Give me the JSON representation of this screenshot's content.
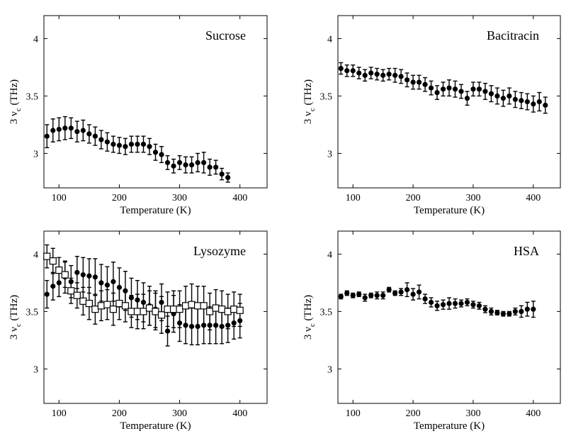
{
  "chart_data": [
    {
      "type": "scatter",
      "title": "Sucrose",
      "xlabel": "Temperature (K)",
      "ylabel_main": "3 ν",
      "ylabel_sub": "c",
      "ylabel_unit": "(THz)",
      "xlim": [
        75,
        445
      ],
      "ylim": [
        2.7,
        4.2
      ],
      "xticks": [
        100,
        200,
        300,
        400
      ],
      "xtick_labels": [
        "100",
        "200",
        "300",
        "400"
      ],
      "yticks": [
        3,
        3.5,
        4
      ],
      "ytick_labels": [
        "3",
        "3.5",
        "4"
      ],
      "series": [
        {
          "name": "Sucrose",
          "marker": "filled-circle",
          "x": [
            80,
            90,
            100,
            110,
            120,
            130,
            140,
            150,
            160,
            170,
            180,
            190,
            200,
            210,
            220,
            230,
            240,
            250,
            260,
            270,
            280,
            290,
            300,
            310,
            320,
            330,
            340,
            350,
            360,
            370,
            380
          ],
          "y": [
            3.15,
            3.2,
            3.21,
            3.22,
            3.22,
            3.19,
            3.2,
            3.17,
            3.15,
            3.12,
            3.1,
            3.08,
            3.07,
            3.06,
            3.08,
            3.08,
            3.08,
            3.06,
            3.01,
            2.99,
            2.92,
            2.89,
            2.92,
            2.9,
            2.9,
            2.92,
            2.92,
            2.88,
            2.88,
            2.82,
            2.79
          ],
          "err": [
            0.1,
            0.1,
            0.1,
            0.1,
            0.09,
            0.09,
            0.09,
            0.08,
            0.08,
            0.08,
            0.08,
            0.07,
            0.07,
            0.07,
            0.07,
            0.07,
            0.07,
            0.07,
            0.07,
            0.07,
            0.06,
            0.06,
            0.06,
            0.07,
            0.07,
            0.08,
            0.09,
            0.07,
            0.06,
            0.05,
            0.04
          ]
        }
      ]
    },
    {
      "type": "scatter",
      "title": "Bacitracin",
      "xlabel": "Temperature (K)",
      "ylabel_main": "3 ν",
      "ylabel_sub": "c",
      "ylabel_unit": "(THz)",
      "xlim": [
        75,
        445
      ],
      "ylim": [
        2.7,
        4.2
      ],
      "xticks": [
        100,
        200,
        300,
        400
      ],
      "xtick_labels": [
        "100",
        "200",
        "300",
        "400"
      ],
      "yticks": [
        3,
        3.5,
        4
      ],
      "ytick_labels": [
        "3",
        "3.5",
        "4"
      ],
      "series": [
        {
          "name": "Bacitracin",
          "marker": "filled-circle",
          "x": [
            80,
            90,
            100,
            110,
            120,
            130,
            140,
            150,
            160,
            170,
            180,
            190,
            200,
            210,
            220,
            230,
            240,
            250,
            260,
            270,
            280,
            290,
            300,
            310,
            320,
            330,
            340,
            350,
            360,
            370,
            380,
            390,
            400,
            410,
            420
          ],
          "y": [
            3.74,
            3.72,
            3.72,
            3.7,
            3.68,
            3.7,
            3.69,
            3.68,
            3.69,
            3.68,
            3.67,
            3.64,
            3.62,
            3.62,
            3.6,
            3.57,
            3.53,
            3.56,
            3.57,
            3.56,
            3.54,
            3.48,
            3.56,
            3.56,
            3.54,
            3.52,
            3.5,
            3.48,
            3.5,
            3.47,
            3.46,
            3.45,
            3.43,
            3.45,
            3.42
          ],
          "err": [
            0.05,
            0.05,
            0.05,
            0.05,
            0.05,
            0.05,
            0.05,
            0.05,
            0.05,
            0.06,
            0.06,
            0.06,
            0.06,
            0.06,
            0.06,
            0.06,
            0.06,
            0.06,
            0.07,
            0.07,
            0.06,
            0.06,
            0.06,
            0.06,
            0.07,
            0.07,
            0.07,
            0.07,
            0.07,
            0.07,
            0.07,
            0.07,
            0.07,
            0.08,
            0.07
          ]
        }
      ]
    },
    {
      "type": "scatter",
      "title": "Lysozyme",
      "xlabel": "Temperature (K)",
      "ylabel_main": "3 ν",
      "ylabel_sub": "c",
      "ylabel_unit": "(THz)",
      "xlim": [
        75,
        445
      ],
      "ylim": [
        2.7,
        4.2
      ],
      "xticks": [
        100,
        200,
        300,
        400
      ],
      "xtick_labels": [
        "100",
        "200",
        "300",
        "400"
      ],
      "yticks": [
        3,
        3.5,
        4
      ],
      "ytick_labels": [
        "3",
        "3.5",
        "4"
      ],
      "series": [
        {
          "name": "Lysozyme (circles)",
          "marker": "filled-circle",
          "x": [
            80,
            90,
            100,
            110,
            120,
            130,
            140,
            150,
            160,
            170,
            180,
            190,
            200,
            210,
            220,
            230,
            240,
            250,
            260,
            270,
            280,
            290,
            300,
            310,
            320,
            330,
            340,
            350,
            360,
            370,
            380,
            390,
            400
          ],
          "y": [
            3.65,
            3.72,
            3.75,
            3.8,
            3.76,
            3.84,
            3.82,
            3.81,
            3.8,
            3.75,
            3.73,
            3.76,
            3.71,
            3.68,
            3.62,
            3.6,
            3.58,
            3.55,
            3.52,
            3.58,
            3.33,
            3.48,
            3.4,
            3.38,
            3.37,
            3.37,
            3.38,
            3.38,
            3.38,
            3.37,
            3.38,
            3.4,
            3.42
          ],
          "err": [
            0.12,
            0.12,
            0.12,
            0.14,
            0.14,
            0.14,
            0.15,
            0.15,
            0.16,
            0.16,
            0.16,
            0.17,
            0.17,
            0.17,
            0.17,
            0.17,
            0.17,
            0.17,
            0.16,
            0.16,
            0.13,
            0.16,
            0.16,
            0.16,
            0.16,
            0.16,
            0.16,
            0.16,
            0.16,
            0.15,
            0.15,
            0.14,
            0.15
          ]
        },
        {
          "name": "Lysozyme (squares)",
          "marker": "open-square",
          "x": [
            80,
            90,
            100,
            110,
            120,
            130,
            140,
            150,
            160,
            170,
            180,
            190,
            200,
            210,
            220,
            230,
            240,
            250,
            260,
            270,
            280,
            290,
            300,
            310,
            320,
            330,
            340,
            350,
            360,
            370,
            380,
            390,
            400
          ],
          "y": [
            3.98,
            3.94,
            3.86,
            3.82,
            3.68,
            3.64,
            3.59,
            3.57,
            3.52,
            3.55,
            3.56,
            3.52,
            3.57,
            3.55,
            3.5,
            3.5,
            3.5,
            3.53,
            3.5,
            3.47,
            3.52,
            3.52,
            3.52,
            3.55,
            3.56,
            3.55,
            3.55,
            3.5,
            3.53,
            3.52,
            3.5,
            3.52,
            3.51
          ],
          "err": [
            0.1,
            0.11,
            0.11,
            0.11,
            0.11,
            0.11,
            0.12,
            0.14,
            0.13,
            0.13,
            0.13,
            0.14,
            0.14,
            0.14,
            0.14,
            0.15,
            0.15,
            0.15,
            0.16,
            0.16,
            0.15,
            0.16,
            0.16,
            0.17,
            0.18,
            0.17,
            0.17,
            0.16,
            0.16,
            0.16,
            0.15,
            0.15,
            0.14
          ]
        }
      ]
    },
    {
      "type": "scatter",
      "title": "HSA",
      "xlabel": "Temperature (K)",
      "ylabel_main": "3 ν",
      "ylabel_sub": "c",
      "ylabel_unit": "(THz)",
      "xlim": [
        75,
        445
      ],
      "ylim": [
        2.7,
        4.2
      ],
      "xticks": [
        100,
        200,
        300,
        400
      ],
      "xtick_labels": [
        "100",
        "200",
        "300",
        "400"
      ],
      "yticks": [
        3,
        3.5,
        4
      ],
      "ytick_labels": [
        "3",
        "3.5",
        "4"
      ],
      "series": [
        {
          "name": "HSA",
          "marker": "filled-circle",
          "x": [
            80,
            90,
            100,
            110,
            120,
            130,
            140,
            150,
            160,
            170,
            180,
            190,
            200,
            210,
            220,
            230,
            240,
            250,
            260,
            270,
            280,
            290,
            300,
            310,
            320,
            330,
            340,
            350,
            360,
            370,
            380,
            390,
            400
          ],
          "y": [
            3.63,
            3.66,
            3.64,
            3.65,
            3.62,
            3.64,
            3.64,
            3.64,
            3.69,
            3.66,
            3.67,
            3.69,
            3.65,
            3.67,
            3.61,
            3.58,
            3.55,
            3.56,
            3.57,
            3.57,
            3.57,
            3.58,
            3.56,
            3.55,
            3.52,
            3.5,
            3.49,
            3.48,
            3.48,
            3.5,
            3.5,
            3.52,
            3.52
          ],
          "err": [
            0.02,
            0.02,
            0.02,
            0.02,
            0.03,
            0.02,
            0.03,
            0.03,
            0.02,
            0.02,
            0.03,
            0.06,
            0.05,
            0.06,
            0.04,
            0.04,
            0.04,
            0.04,
            0.05,
            0.04,
            0.03,
            0.03,
            0.03,
            0.03,
            0.03,
            0.03,
            0.02,
            0.02,
            0.02,
            0.03,
            0.05,
            0.06,
            0.07
          ]
        }
      ]
    }
  ]
}
